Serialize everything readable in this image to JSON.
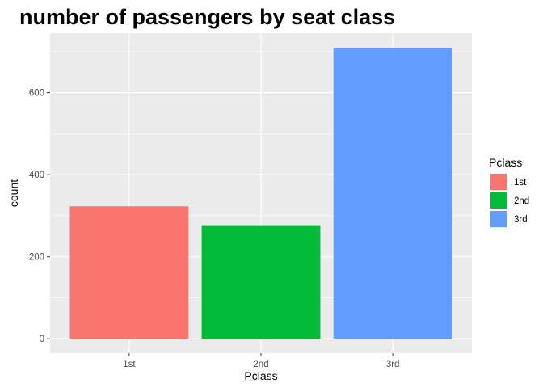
{
  "chart_data": {
    "type": "bar",
    "title": "number of passengers by seat class",
    "xlabel": "Pclass",
    "ylabel": "count",
    "categories": [
      "1st",
      "2nd",
      "3rd"
    ],
    "values": [
      323,
      277,
      709
    ],
    "colors": [
      "#F8766D",
      "#00BA38",
      "#619CFF"
    ],
    "ylim": [
      -35,
      745
    ],
    "yticks": [
      0,
      200,
      400,
      600
    ],
    "grid": true,
    "panel_background": "#EBEBEB",
    "gridline_color": "#FFFFFF",
    "legend": {
      "title": "Pclass",
      "placement": "right",
      "entries": [
        "1st",
        "2nd",
        "3rd"
      ]
    }
  }
}
